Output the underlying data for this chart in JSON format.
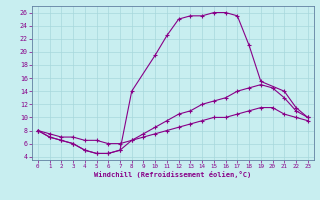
{
  "xlabel": "Windchill (Refroidissement éolien,°C)",
  "background_color": "#c8eef0",
  "grid_color": "#a8d8dc",
  "line_color": "#880088",
  "xlim": [
    -0.5,
    23.5
  ],
  "ylim": [
    3.5,
    27
  ],
  "yticks": [
    4,
    6,
    8,
    10,
    12,
    14,
    16,
    18,
    20,
    22,
    24,
    26
  ],
  "xticks": [
    0,
    1,
    2,
    3,
    4,
    5,
    6,
    7,
    8,
    9,
    10,
    11,
    12,
    13,
    14,
    15,
    16,
    17,
    18,
    19,
    20,
    21,
    22,
    23
  ],
  "curve1_x": [
    0,
    1,
    2,
    3,
    4,
    5,
    6,
    7,
    8,
    10,
    11,
    12,
    13,
    14,
    15,
    16,
    17,
    18,
    19,
    21,
    22,
    23
  ],
  "curve1_y": [
    8,
    7,
    6.5,
    6,
    5,
    4.5,
    4.5,
    5,
    14,
    19.5,
    22.5,
    25,
    25.5,
    25.5,
    26,
    26,
    25.5,
    21,
    15.5,
    14,
    11.5,
    10
  ],
  "curve2_x": [
    0,
    1,
    2,
    3,
    4,
    5,
    6,
    7,
    8,
    9,
    10,
    11,
    12,
    13,
    14,
    15,
    16,
    17,
    18,
    19,
    20,
    21,
    22,
    23
  ],
  "curve2_y": [
    8,
    7,
    6.5,
    6,
    5,
    4.5,
    4.5,
    5,
    6.5,
    7.5,
    8.5,
    9.5,
    10.5,
    11,
    12,
    12.5,
    13,
    14,
    14.5,
    15,
    14.5,
    13,
    11,
    10
  ],
  "curve3_x": [
    0,
    1,
    2,
    3,
    4,
    5,
    6,
    7,
    8,
    9,
    10,
    11,
    12,
    13,
    14,
    15,
    16,
    17,
    18,
    19,
    20,
    21,
    22,
    23
  ],
  "curve3_y": [
    8,
    7.5,
    7,
    7,
    6.5,
    6.5,
    6,
    6,
    6.5,
    7,
    7.5,
    8,
    8.5,
    9,
    9.5,
    10,
    10,
    10.5,
    11,
    11.5,
    11.5,
    10.5,
    10,
    9.5
  ]
}
